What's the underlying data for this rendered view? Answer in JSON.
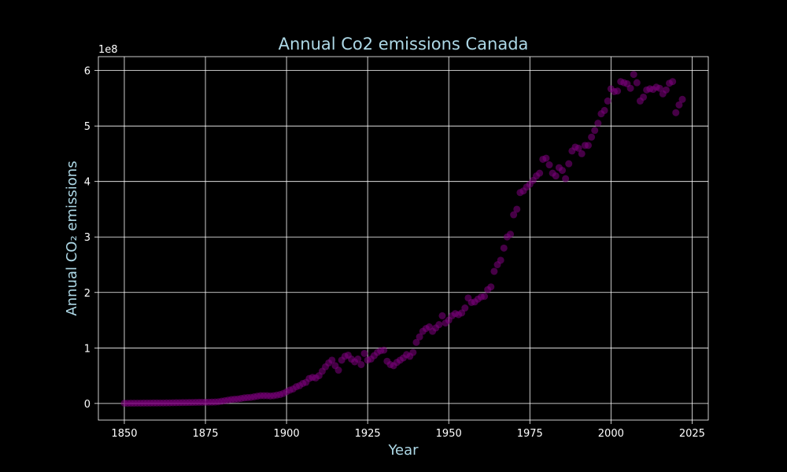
{
  "chart_data": {
    "type": "scatter",
    "title": "Annual Co2 emissions Canada",
    "xlabel": "Year",
    "ylabel": "Annual CO₂ emissions",
    "y_offset_label": "1e8",
    "xlim": [
      1842,
      2030
    ],
    "ylim": [
      -30000000,
      625000000
    ],
    "x_ticks": [
      1850,
      1875,
      1900,
      1925,
      1950,
      1975,
      2000,
      2025
    ],
    "y_ticks": [
      0,
      100000000,
      200000000,
      300000000,
      400000000,
      500000000,
      600000000
    ],
    "y_tick_labels": [
      "0",
      "1",
      "2",
      "3",
      "4",
      "5",
      "6"
    ],
    "grid": true,
    "colors": {
      "background": "#000000",
      "marker": "#800080",
      "grid": "#ffffff",
      "title": "#add8e6",
      "tick": "#ffffff"
    },
    "x": [
      1850,
      1851,
      1852,
      1853,
      1854,
      1855,
      1856,
      1857,
      1858,
      1859,
      1860,
      1861,
      1862,
      1863,
      1864,
      1865,
      1866,
      1867,
      1868,
      1869,
      1870,
      1871,
      1872,
      1873,
      1874,
      1875,
      1876,
      1877,
      1878,
      1879,
      1880,
      1881,
      1882,
      1883,
      1884,
      1885,
      1886,
      1887,
      1888,
      1889,
      1890,
      1891,
      1892,
      1893,
      1894,
      1895,
      1896,
      1897,
      1898,
      1899,
      1900,
      1901,
      1902,
      1903,
      1904,
      1905,
      1906,
      1907,
      1908,
      1909,
      1910,
      1911,
      1912,
      1913,
      1914,
      1915,
      1916,
      1917,
      1918,
      1919,
      1920,
      1921,
      1922,
      1923,
      1924,
      1925,
      1926,
      1927,
      1928,
      1929,
      1930,
      1931,
      1932,
      1933,
      1934,
      1935,
      1936,
      1937,
      1938,
      1939,
      1940,
      1941,
      1942,
      1943,
      1944,
      1945,
      1946,
      1947,
      1948,
      1949,
      1950,
      1951,
      1952,
      1953,
      1954,
      1955,
      1956,
      1957,
      1958,
      1959,
      1960,
      1961,
      1962,
      1963,
      1964,
      1965,
      1966,
      1967,
      1968,
      1969,
      1970,
      1971,
      1972,
      1973,
      1974,
      1975,
      1976,
      1977,
      1978,
      1979,
      1980,
      1981,
      1982,
      1983,
      1984,
      1985,
      1986,
      1987,
      1988,
      1989,
      1990,
      1991,
      1992,
      1993,
      1994,
      1995,
      1996,
      1997,
      1998,
      1999,
      2000,
      2001,
      2002,
      2003,
      2004,
      2005,
      2006,
      2007,
      2008,
      2009,
      2010,
      2011,
      2012,
      2013,
      2014,
      2015,
      2016,
      2017,
      2018,
      2019,
      2020,
      2021,
      2022
    ],
    "y": [
      300000,
      350000,
      400000,
      450000,
      500000,
      550000,
      600000,
      650000,
      700000,
      750000,
      800000,
      850000,
      900000,
      1000000,
      1100000,
      1200000,
      1300000,
      1400000,
      1500000,
      1600000,
      1700000,
      1800000,
      1900000,
      2000000,
      2100000,
      2200000,
      2300000,
      2400000,
      2600000,
      3000000,
      4000000,
      5000000,
      6000000,
      7000000,
      7500000,
      8000000,
      9000000,
      10000000,
      10500000,
      11000000,
      12000000,
      13000000,
      14000000,
      14000000,
      14000000,
      13500000,
      14000000,
      15000000,
      16000000,
      18000000,
      21000000,
      24000000,
      26000000,
      30000000,
      32000000,
      36000000,
      38000000,
      45000000,
      47000000,
      46000000,
      50000000,
      58000000,
      66000000,
      73000000,
      78000000,
      68000000,
      60000000,
      78000000,
      85000000,
      87000000,
      80000000,
      75000000,
      80000000,
      70000000,
      90000000,
      78000000,
      80000000,
      86000000,
      92000000,
      95000000,
      96000000,
      76000000,
      70000000,
      68000000,
      74000000,
      78000000,
      82000000,
      88000000,
      85000000,
      92000000,
      110000000,
      120000000,
      130000000,
      135000000,
      138000000,
      130000000,
      136000000,
      142000000,
      158000000,
      145000000,
      150000000,
      158000000,
      162000000,
      160000000,
      163000000,
      172000000,
      190000000,
      182000000,
      183000000,
      188000000,
      192000000,
      193000000,
      205000000,
      210000000,
      238000000,
      250000000,
      258000000,
      280000000,
      300000000,
      305000000,
      340000000,
      350000000,
      380000000,
      383000000,
      390000000,
      395000000,
      402000000,
      410000000,
      415000000,
      440000000,
      442000000,
      430000000,
      415000000,
      410000000,
      425000000,
      420000000,
      405000000,
      432000000,
      455000000,
      462000000,
      460000000,
      450000000,
      465000000,
      465000000,
      480000000,
      492000000,
      505000000,
      522000000,
      528000000,
      545000000,
      567000000,
      562000000,
      563000000,
      580000000,
      578000000,
      576000000,
      568000000,
      593000000,
      578000000,
      545000000,
      552000000,
      565000000,
      567000000,
      566000000,
      570000000,
      568000000,
      558000000,
      565000000,
      577000000,
      580000000,
      524000000,
      538000000,
      548000000
    ]
  }
}
